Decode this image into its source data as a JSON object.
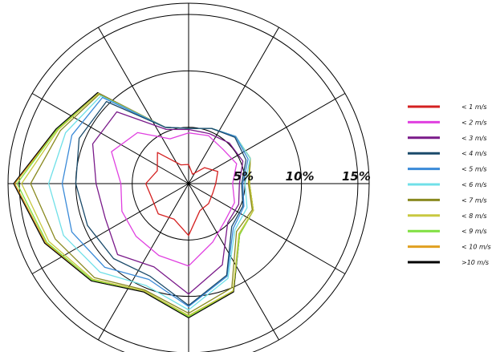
{
  "chart_data": {
    "type": "radar",
    "chart_kind": "wind-rose",
    "title": "",
    "directions": 16,
    "rings": [
      {
        "value": 5,
        "label": "5%"
      },
      {
        "value": 10,
        "label": "10%"
      },
      {
        "value": 15,
        "label": "15%"
      }
    ],
    "rmax": 16,
    "grid": true,
    "legend_position": "right",
    "series": [
      {
        "name": "< 1 m/s",
        "color": "#d42020",
        "values": [
          1.7,
          0.9,
          2.0,
          2.8,
          2.4,
          2.3,
          2.5,
          2.6,
          4.6,
          3.4,
          3.8,
          3.5,
          3.8,
          3.0,
          3.9,
          1.8
        ]
      },
      {
        "name": "< 2 m/s",
        "color": "#e040e0",
        "values": [
          4.5,
          4.6,
          4.3,
          4.6,
          3.9,
          4.4,
          4.6,
          5.6,
          7.3,
          6.9,
          6.6,
          6.4,
          6.0,
          7.4,
          6.4,
          4.3
        ]
      },
      {
        "name": "< 3 m/s",
        "color": "#7a1a8a",
        "values": [
          4.8,
          4.8,
          5.1,
          5.2,
          4.5,
          4.8,
          4.9,
          7.8,
          9.8,
          8.0,
          8.9,
          8.0,
          8.2,
          9.2,
          9.0,
          5.2
        ]
      },
      {
        "name": "< 4 m/s",
        "color": "#1a4a6a",
        "values": [
          4.9,
          5.3,
          5.8,
          5.5,
          4.7,
          5.2,
          5.4,
          8.8,
          10.8,
          8.9,
          9.4,
          9.7,
          10.0,
          10.5,
          10.3,
          5.4
        ]
      },
      {
        "name": "< 5 m/s",
        "color": "#3a8ad8",
        "values": [
          4.9,
          5.3,
          5.9,
          5.7,
          4.8,
          5.3,
          5.6,
          8.9,
          10.9,
          9.2,
          10.5,
          11.2,
          11.2,
          11.2,
          10.8,
          5.4
        ]
      },
      {
        "name": "< 6 m/s",
        "color": "#70e0e8",
        "values": [
          4.9,
          5.3,
          5.9,
          5.9,
          5.0,
          5.6,
          5.8,
          9.1,
          11.2,
          9.8,
          11.1,
          12.0,
          12.4,
          11.8,
          11.0,
          5.4
        ]
      },
      {
        "name": "< 7 m/s",
        "color": "#8a8a20",
        "values": [
          4.9,
          5.3,
          5.9,
          5.9,
          5.3,
          6.1,
          6.0,
          10.0,
          11.5,
          10.2,
          11.8,
          12.8,
          14.0,
          12.3,
          11.2,
          5.4
        ]
      },
      {
        "name": "< 8 m/s",
        "color": "#c8c840",
        "values": [
          4.9,
          5.3,
          5.9,
          5.9,
          5.4,
          6.2,
          6.3,
          10.3,
          11.7,
          10.3,
          12.0,
          13.4,
          14.8,
          12.5,
          11.3,
          5.4
        ]
      },
      {
        "name": "< 9 m/s",
        "color": "#80e040",
        "values": [
          4.9,
          5.3,
          5.9,
          5.9,
          5.4,
          6.2,
          6.4,
          10.3,
          11.8,
          10.3,
          12.1,
          13.6,
          15.2,
          12.6,
          11.3,
          5.4
        ]
      },
      {
        "name": "< 10 m/s",
        "color": "#e0a020",
        "values": [
          4.9,
          5.3,
          5.9,
          5.9,
          5.4,
          6.2,
          6.4,
          10.3,
          11.8,
          10.3,
          12.1,
          13.7,
          15.4,
          12.6,
          11.3,
          5.4
        ]
      },
      {
        "name": ">10 m/s",
        "color": "#000000",
        "values": [
          4.9,
          5.3,
          5.9,
          5.9,
          5.4,
          6.2,
          6.4,
          10.4,
          11.9,
          10.4,
          12.2,
          13.8,
          15.5,
          12.7,
          11.4,
          5.4
        ]
      }
    ]
  }
}
